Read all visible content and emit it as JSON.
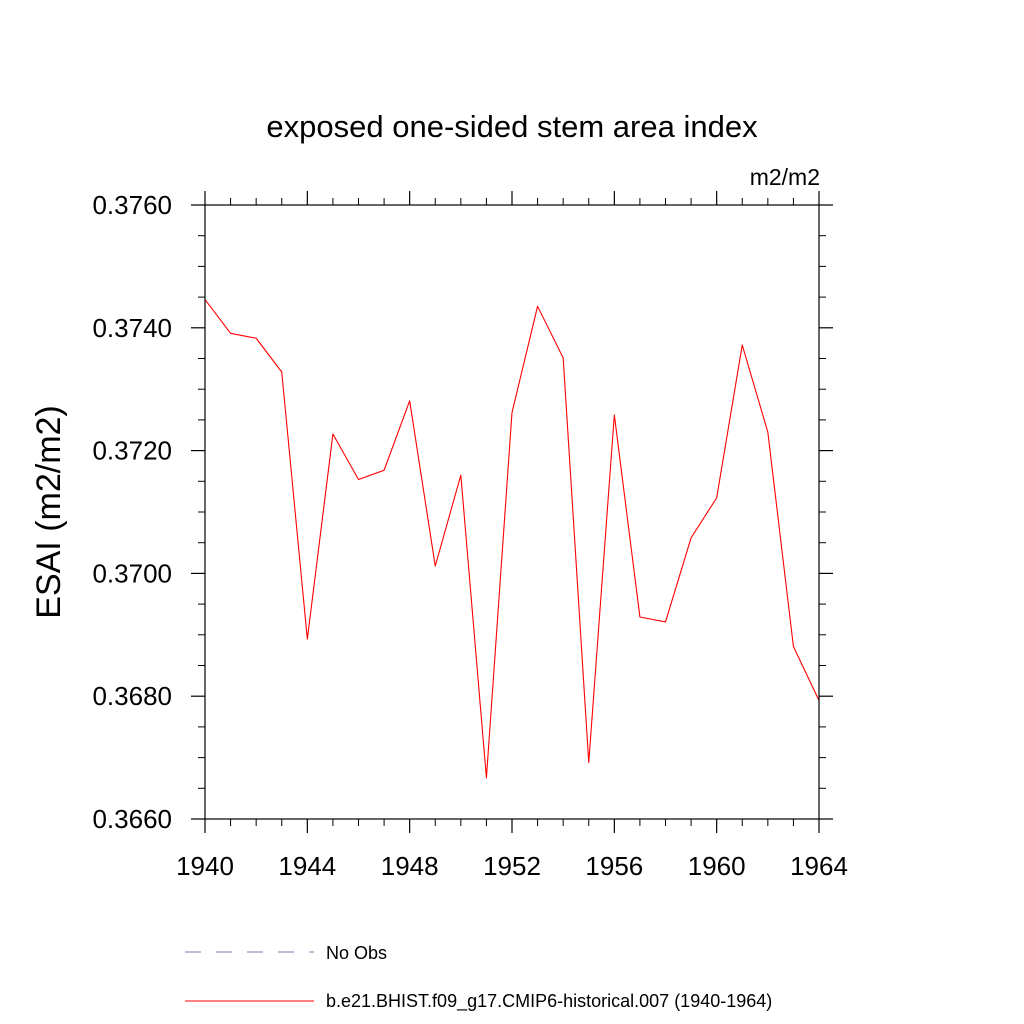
{
  "chart_data": {
    "type": "line",
    "title": "exposed one-sided stem area index",
    "units": "m2/m2",
    "ylabel": "ESAI  (m2/m2)",
    "xlabel": "",
    "xlim": [
      1940,
      1964
    ],
    "ylim": [
      0.366,
      0.376
    ],
    "x_ticks": [
      1940,
      1944,
      1948,
      1952,
      1956,
      1960,
      1964
    ],
    "x_tick_labels": [
      "1940",
      "1944",
      "1948",
      "1952",
      "1956",
      "1960",
      "1964"
    ],
    "y_ticks": [
      0.366,
      0.368,
      0.37,
      0.372,
      0.374,
      0.376
    ],
    "y_tick_labels": [
      "0.3660",
      "0.3680",
      "0.3700",
      "0.3720",
      "0.3740",
      "0.3760"
    ],
    "grid": false,
    "legend_position": "bottom",
    "series": [
      {
        "name": "b.e21.BHIST.f09_g17.CMIP6-historical.007 (1940-1964)",
        "color": "#ff0000",
        "x": [
          1940,
          1941,
          1942,
          1943,
          1944,
          1945,
          1946,
          1947,
          1948,
          1949,
          1950,
          1951,
          1952,
          1953,
          1954,
          1955,
          1956,
          1957,
          1958,
          1959,
          1960,
          1961,
          1962,
          1963,
          1964
        ],
        "y": [
          0.37446,
          0.37391,
          0.37383,
          0.37328,
          0.36893,
          0.37227,
          0.37153,
          0.37168,
          0.37281,
          0.37012,
          0.3716,
          0.36667,
          0.37262,
          0.37435,
          0.37351,
          0.36692,
          0.37258,
          0.36929,
          0.36921,
          0.37058,
          0.37123,
          0.37372,
          0.3723,
          0.36881,
          0.36793
        ]
      }
    ],
    "legend": [
      {
        "label": "No Obs",
        "color": "#7a7ab8",
        "dash": true
      },
      {
        "label": "b.e21.BHIST.f09_g17.CMIP6-historical.007 (1940-1964)",
        "color": "#ff0000",
        "dash": false
      }
    ]
  }
}
